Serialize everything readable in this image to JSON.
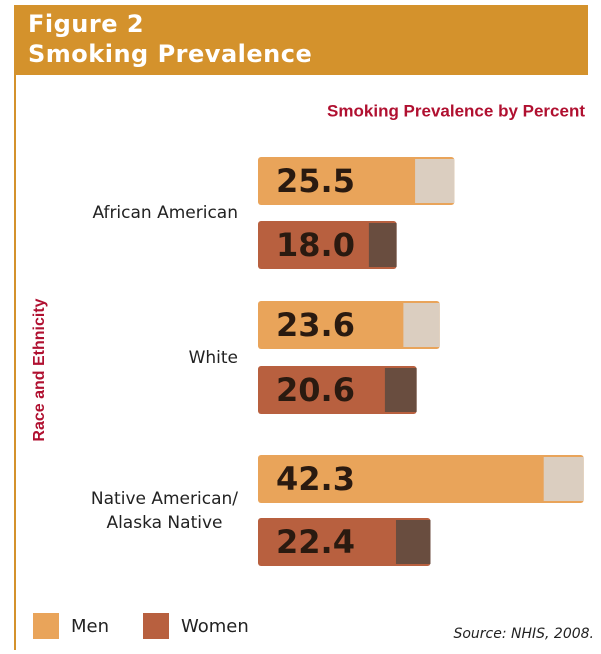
{
  "chart_data": {
    "type": "bar",
    "figure_label": "Figure 2",
    "figure_title": "Smoking Prevalence",
    "title": "Smoking Prevalence by Percent",
    "y_label": "Race and Ethnicity",
    "source": "Source: NHIS, 2008.",
    "categories": [
      "African American",
      "White",
      "Native American/\nAlaska Native"
    ],
    "series": [
      {
        "name": "Men",
        "color": "#e9a45a",
        "values": [
          25.5,
          23.6,
          42.3
        ]
      },
      {
        "name": "Women",
        "color": "#b8603f",
        "values": [
          18,
          20.6,
          22.4
        ],
        "value_labels": [
          "18.0",
          "20.6",
          "22.4"
        ]
      }
    ]
  }
}
